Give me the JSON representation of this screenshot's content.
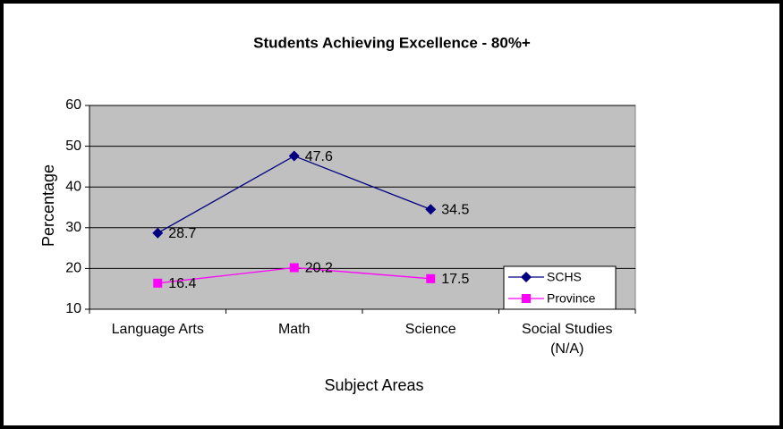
{
  "chart_data": {
    "type": "line",
    "title": "Students Achieving Excellence - 80%+",
    "x_label": "Subject Areas",
    "y_label": "Percentage",
    "categories": [
      "Language Arts",
      "Math",
      "Science",
      "Social Studies (N/A)"
    ],
    "series": [
      {
        "name": "SCHS",
        "color": "#000080",
        "marker": "diamond",
        "values": [
          28.7,
          47.6,
          34.5,
          null
        ]
      },
      {
        "name": "Province",
        "color": "#ff00ff",
        "marker": "square",
        "values": [
          16.4,
          20.2,
          17.5,
          null
        ]
      }
    ],
    "ylim": [
      10,
      60
    ],
    "yticks": [
      10,
      20,
      30,
      40,
      50,
      60
    ],
    "grid": true,
    "legend": "lower right",
    "plot_color": "#c0c0c0"
  }
}
